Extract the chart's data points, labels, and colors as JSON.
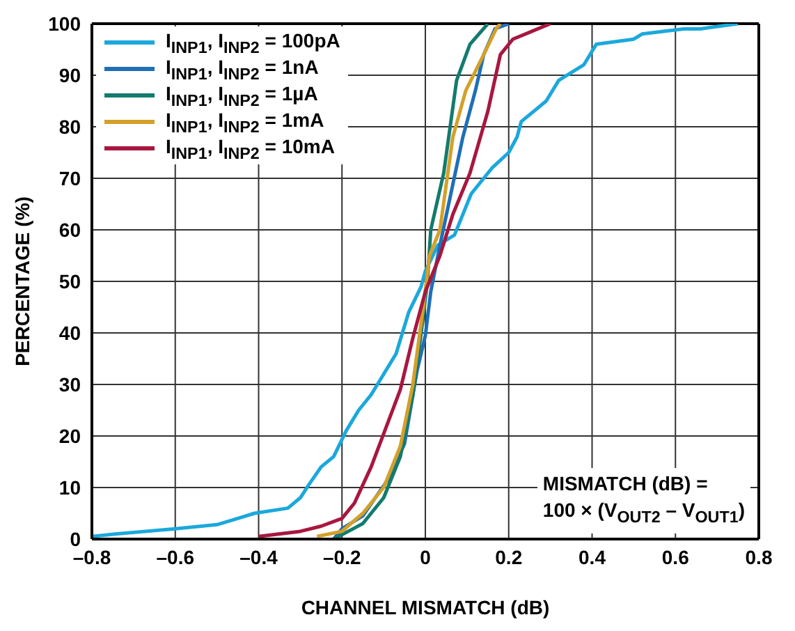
{
  "chart_data": {
    "type": "line",
    "xlabel": "CHANNEL MISMATCH (dB)",
    "ylabel": "PERCENTAGE (%)",
    "xlim": [
      -0.8,
      0.8
    ],
    "xticks": [
      {
        "value": -0.8,
        "label": "–0.8"
      },
      {
        "value": -0.6,
        "label": "–0.6"
      },
      {
        "value": -0.4,
        "label": "–0.4"
      },
      {
        "value": -0.2,
        "label": "–0.2"
      },
      0,
      0.2,
      0.4,
      0.6,
      0.8
    ],
    "ylim": [
      0,
      100
    ],
    "yticks": [
      0,
      10,
      20,
      30,
      40,
      50,
      60,
      70,
      80,
      90,
      100
    ],
    "grid": true,
    "legend": "top left",
    "line_style": "solid",
    "marker": "none",
    "annotations": [
      "MISMATCH (dB) =",
      "100 × (V$_{OUT2}$ – V$_{OUT1}$)"
    ],
    "series": [
      {
        "name": "I$_{INP1}$, I$_{INP2}$ = 100pA",
        "color": "#1ba8dc",
        "x": [
          -0.8,
          -0.74,
          -0.6,
          -0.5,
          -0.45,
          -0.41,
          -0.33,
          -0.3,
          -0.28,
          -0.25,
          -0.22,
          -0.19,
          -0.16,
          -0.13,
          -0.1,
          -0.07,
          -0.04,
          -0.01,
          0.0,
          0.03,
          0.07,
          0.11,
          0.16,
          0.2,
          0.22,
          0.23,
          0.29,
          0.32,
          0.38,
          0.41,
          0.5,
          0.52,
          0.62,
          0.66,
          0.75
        ],
        "values": [
          0.5,
          1,
          2,
          2.8,
          4,
          5,
          6,
          8,
          10.5,
          14,
          16,
          21,
          25,
          28,
          32,
          36,
          44,
          49,
          52,
          57,
          59,
          67,
          72,
          75,
          78,
          81,
          85,
          89,
          92,
          96,
          97,
          98,
          99,
          99,
          100
        ]
      },
      {
        "name": "I$_{INP1}$, I$_{INP2}$ = 1nA",
        "color": "#1f6fb8",
        "x": [
          -0.22,
          -0.2,
          -0.15,
          -0.09,
          -0.05,
          -0.02,
          0.0,
          0.013,
          0.035,
          0.09,
          0.12,
          0.14,
          0.167,
          0.2
        ],
        "values": [
          0,
          2,
          4.5,
          11.5,
          18.5,
          32.6,
          39.5,
          48,
          57,
          78,
          87,
          94,
          99,
          100
        ]
      },
      {
        "name": "I$_{INP1}$, I$_{INP2}$ = 1µA",
        "color": "#137b6e",
        "x": [
          -0.22,
          -0.15,
          -0.1,
          -0.06,
          -0.03,
          -0.01,
          0.005,
          0.013,
          0.044,
          0.075,
          0.107,
          0.15
        ],
        "values": [
          0,
          3,
          8,
          16,
          28,
          40,
          50,
          60,
          71,
          89,
          96,
          100
        ]
      },
      {
        "name": "I$_{INP1}$, I$_{INP2}$ = 1mA",
        "color": "#d4a02a",
        "x": [
          -0.26,
          -0.2,
          -0.15,
          -0.1,
          -0.06,
          -0.03,
          -0.005,
          0.01,
          0.035,
          0.066,
          0.097,
          0.14,
          0.17,
          0.18
        ],
        "values": [
          0.5,
          1.5,
          5,
          10,
          18,
          30,
          45,
          55,
          60,
          78,
          87,
          94,
          99,
          100
        ]
      },
      {
        "name": "I$_{INP1}$, I$_{INP2}$ = 10mA",
        "color": "#a8173f",
        "x": [
          -0.4,
          -0.3,
          -0.25,
          -0.2,
          -0.17,
          -0.13,
          -0.06,
          -0.03,
          0.0,
          0.035,
          0.066,
          0.107,
          0.15,
          0.18,
          0.21,
          0.3
        ],
        "values": [
          0.5,
          1.5,
          2.5,
          4,
          7,
          14,
          29,
          39,
          48,
          55,
          63,
          71,
          83,
          94,
          97,
          100
        ]
      }
    ]
  }
}
